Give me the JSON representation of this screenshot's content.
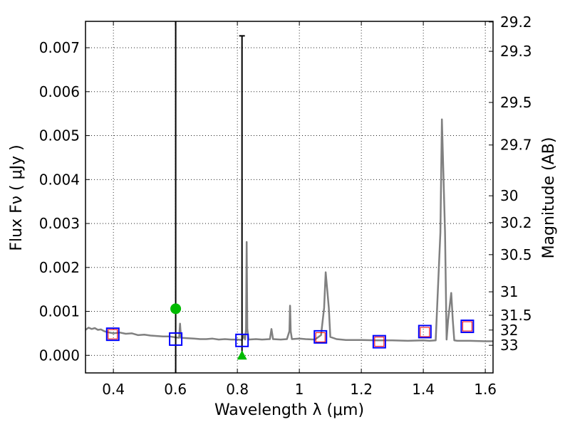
{
  "chart_data": {
    "type": "line",
    "xlabel": "Wavelength  λ (μm)",
    "ylabel": "Flux  Fν  ( μJy )",
    "y2label": "Magnitude (AB)",
    "xlim": [
      0.31,
      1.625
    ],
    "ylim": [
      -0.0004,
      0.0076
    ],
    "grid": true,
    "x_ticks": [
      0.4,
      0.6,
      0.8,
      1.0,
      1.2,
      1.4,
      1.6
    ],
    "x_tick_labels": [
      "0.4",
      "0.6",
      "0.8",
      "1",
      "1.2",
      "1.4",
      "1.6"
    ],
    "y_ticks": [
      0.0,
      0.001,
      0.002,
      0.003,
      0.004,
      0.005,
      0.006,
      0.007
    ],
    "y_tick_labels": [
      "0.000",
      "0.001",
      "0.002",
      "0.003",
      "0.004",
      "0.005",
      "0.006",
      "0.007"
    ],
    "y2_tick_values": [
      29.2,
      29.3,
      29.5,
      29.7,
      30,
      30.2,
      30.5,
      31,
      31.5,
      32,
      33
    ],
    "y2_tick_labels": [
      "29.2",
      "29.3",
      "29.5",
      "29.7",
      "30",
      "30.2",
      "30.5",
      "31",
      "31.5",
      "32",
      "33"
    ],
    "spectrum": {
      "color": "#808080",
      "x": [
        0.31,
        0.32,
        0.33,
        0.34,
        0.35,
        0.36,
        0.37,
        0.38,
        0.4,
        0.42,
        0.44,
        0.46,
        0.48,
        0.5,
        0.52,
        0.54,
        0.56,
        0.58,
        0.6,
        0.612,
        0.615,
        0.618,
        0.64,
        0.66,
        0.68,
        0.7,
        0.72,
        0.74,
        0.76,
        0.78,
        0.8,
        0.815,
        0.82,
        0.825,
        0.828,
        0.83,
        0.832,
        0.836,
        0.86,
        0.88,
        0.905,
        0.91,
        0.915,
        0.94,
        0.96,
        0.968,
        0.97,
        0.972,
        0.976,
        1.0,
        1.02,
        1.05,
        1.07,
        1.08,
        1.085,
        1.095,
        1.1,
        1.12,
        1.15,
        1.2,
        1.25,
        1.3,
        1.35,
        1.4,
        1.42,
        1.44,
        1.455,
        1.46,
        1.47,
        1.475,
        1.48,
        1.49,
        1.495,
        1.5,
        1.51,
        1.55,
        1.6,
        1.625
      ],
      "y": [
        0.00058,
        0.00063,
        0.0006,
        0.00062,
        0.00058,
        0.00059,
        0.00055,
        0.00053,
        0.0005,
        0.00052,
        0.00049,
        0.0005,
        0.00046,
        0.00047,
        0.00045,
        0.00044,
        0.00043,
        0.00043,
        0.00041,
        0.0004,
        0.00072,
        0.0004,
        0.00039,
        0.00038,
        0.00037,
        0.00037,
        0.00038,
        0.00036,
        0.00037,
        0.00036,
        0.00036,
        0.00035,
        0.00045,
        0.00036,
        0.0006,
        0.00258,
        0.0006,
        0.00036,
        0.00037,
        0.00036,
        0.00037,
        0.0006,
        0.00037,
        0.00036,
        0.00037,
        0.00055,
        0.00113,
        0.00055,
        0.00037,
        0.00038,
        0.00037,
        0.00036,
        0.00046,
        0.00108,
        0.00189,
        0.00108,
        0.00042,
        0.00037,
        0.00035,
        0.00035,
        0.00034,
        0.00034,
        0.00033,
        0.00034,
        0.00033,
        0.00034,
        0.0028,
        0.00537,
        0.0028,
        0.00036,
        0.0008,
        0.00142,
        0.0008,
        0.00034,
        0.00033,
        0.00033,
        0.00032,
        0.00032
      ]
    },
    "open_markers": [
      {
        "x": 0.398,
        "y_outer": 0.00048,
        "y_inner": 0.00048
      },
      {
        "x": 0.601,
        "y_outer": 0.00037,
        "y_inner": null
      },
      {
        "x": 0.815,
        "y_outer": 0.00034,
        "y_inner": null
      },
      {
        "x": 1.068,
        "y_outer": 0.00042,
        "y_inner": 0.00041
      },
      {
        "x": 1.258,
        "y_outer": 0.00031,
        "y_inner": 0.00031
      },
      {
        "x": 1.405,
        "y_outer": 0.00054,
        "y_inner": 0.00053
      },
      {
        "x": 1.542,
        "y_outer": 0.00066,
        "y_inner": 0.00066
      }
    ],
    "outer_marker_color": "#0000ff",
    "inner_marker_color": "#ff0000",
    "green_circle": {
      "x": 0.601,
      "y": 0.00106,
      "color": "#00bb00"
    },
    "green_triangle": {
      "x": 0.815,
      "y": 0.0,
      "color": "#00bb00"
    },
    "vertical_line_x": 0.601,
    "errorbar": {
      "x": 0.815,
      "y_low": 0.0,
      "y_high": 0.00727
    }
  }
}
